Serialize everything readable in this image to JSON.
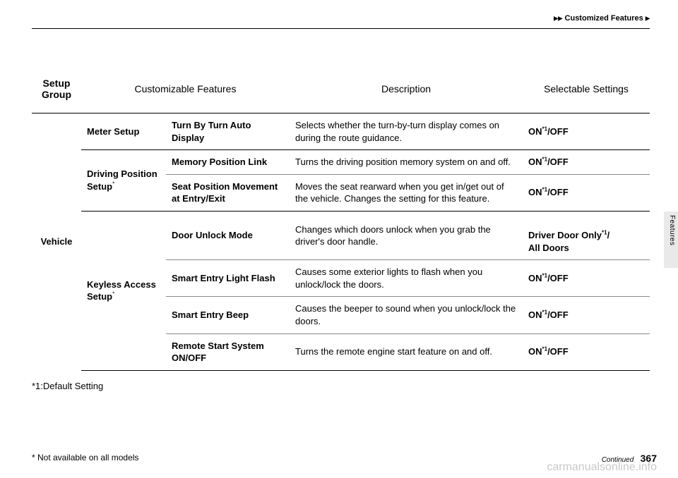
{
  "header": {
    "crumb_prefix": "▶▶",
    "crumb": "Customized Features",
    "crumb_suffix": "▶"
  },
  "side_label": "Features",
  "table": {
    "headers": {
      "group": "Setup\nGroup",
      "features": "Customizable Features",
      "desc": "Description",
      "settings": "Selectable Settings"
    },
    "group": "Vehicle",
    "sections": [
      {
        "name": "Meter Setup",
        "rows": [
          {
            "feature": "Turn By Turn Auto Display",
            "desc": "Selects whether the turn-by-turn display comes on during the route guidance.",
            "setting_pre": "ON",
            "setting_sup": "*1",
            "setting_post": "/OFF"
          }
        ]
      },
      {
        "name": "Driving Position Setup",
        "name_sup": "*",
        "rows": [
          {
            "feature": "Memory Position Link",
            "desc": "Turns the driving position memory system on and off.",
            "setting_pre": "ON",
            "setting_sup": "*1",
            "setting_post": "/OFF"
          },
          {
            "feature": "Seat Position Movement at Entry/Exit",
            "desc": "Moves the seat rearward when you get in/get out of the vehicle. Changes the setting for this feature.",
            "setting_pre": "ON",
            "setting_sup": "*1",
            "setting_post": "/OFF"
          }
        ]
      },
      {
        "name": "Keyless Access Setup",
        "name_sup": "*",
        "rows": [
          {
            "feature": "Door Unlock Mode",
            "desc": "Changes which doors unlock when you grab the driver's door handle.",
            "setting_pre": "Driver Door Only",
            "setting_sup": "*1",
            "setting_post": "/\nAll Doors"
          },
          {
            "feature": "Smart Entry Light Flash",
            "desc": "Causes some exterior lights to flash when you unlock/lock the doors.",
            "setting_pre": "ON",
            "setting_sup": "*1",
            "setting_post": "/OFF"
          },
          {
            "feature": "Smart Entry Beep",
            "desc": "Causes the beeper to sound when you unlock/lock the doors.",
            "setting_pre": "ON",
            "setting_sup": "*1",
            "setting_post": "/OFF"
          },
          {
            "feature": "Remote Start System ON/OFF",
            "desc": "Turns the remote engine start feature on and off.",
            "setting_pre": "ON",
            "setting_sup": "*1",
            "setting_post": "/OFF"
          }
        ]
      }
    ]
  },
  "note_default": "*1:Default Setting",
  "footer": {
    "left": "* Not available on all models",
    "continued": "Continued",
    "page": "367"
  },
  "watermark": "carmanualsonline.info"
}
